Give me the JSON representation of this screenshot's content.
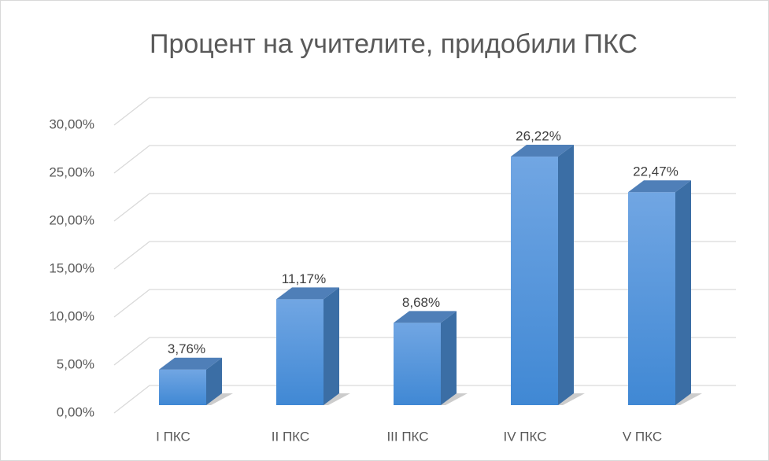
{
  "chart_data": {
    "type": "bar",
    "title": "Процент на учителите, придобили ПКС",
    "categories": [
      "I ПКС",
      "II ПКС",
      "III ПКС",
      "IV ПКС",
      "V ПКС"
    ],
    "values": [
      3.76,
      11.17,
      8.68,
      26.22,
      22.47
    ],
    "value_labels": [
      "3,76%",
      "11,17%",
      "8,68%",
      "26,22%",
      "22,47%"
    ],
    "color": "#5b9bd5",
    "ylim": [
      0,
      30
    ],
    "yticks": [
      {
        "value": 0,
        "label": "0,00%"
      },
      {
        "value": 5,
        "label": "5,00%"
      },
      {
        "value": 10,
        "label": "10,00%"
      },
      {
        "value": 15,
        "label": "15,00%"
      },
      {
        "value": 20,
        "label": "20,00%"
      },
      {
        "value": 25,
        "label": "25,00%"
      },
      {
        "value": 30,
        "label": "30,00%"
      }
    ],
    "grid": true
  }
}
